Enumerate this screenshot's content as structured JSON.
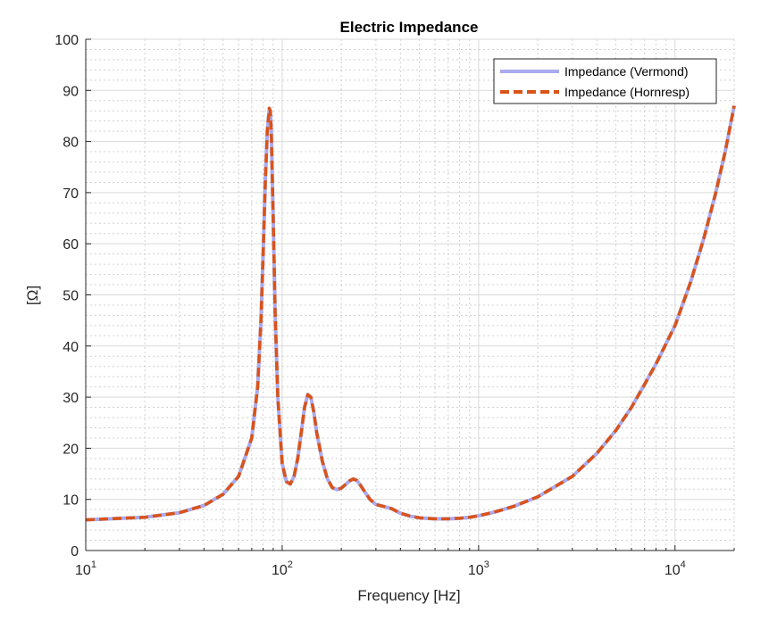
{
  "chart_data": {
    "type": "line",
    "title": "Electric Impedance",
    "xlabel": "Frequency [Hz]",
    "ylabel": "[Ω]",
    "xscale": "log",
    "xlim": [
      10,
      20000
    ],
    "ylim": [
      0,
      100
    ],
    "x_ticks": [
      {
        "base": "10",
        "exp": "1",
        "value": 10
      },
      {
        "base": "10",
        "exp": "2",
        "value": 100
      },
      {
        "base": "10",
        "exp": "3",
        "value": 1000
      },
      {
        "base": "10",
        "exp": "4",
        "value": 10000
      }
    ],
    "y_ticks": [
      "0",
      "10",
      "20",
      "30",
      "40",
      "50",
      "60",
      "70",
      "80",
      "90",
      "100"
    ],
    "grid": true,
    "minor_grid": true,
    "legend_position": "top-right",
    "series": [
      {
        "name": "Impedance (Vermond)",
        "color": "#aaaaee",
        "style": "solid",
        "x": [
          10,
          20,
          30,
          40,
          50,
          60,
          70,
          75,
          78,
          80,
          82,
          84,
          86,
          87,
          88,
          90,
          92,
          95,
          100,
          105,
          110,
          115,
          120,
          125,
          130,
          135,
          140,
          145,
          150,
          160,
          170,
          180,
          190,
          200,
          210,
          220,
          230,
          240,
          250,
          260,
          280,
          300,
          330,
          360,
          400,
          450,
          500,
          600,
          700,
          800,
          900,
          1000,
          1200,
          1500,
          2000,
          3000,
          4000,
          5000,
          6000,
          7000,
          8000,
          10000,
          12000,
          14000,
          16000,
          18000,
          20000
        ],
        "y": [
          6.0,
          6.5,
          7.4,
          8.8,
          11.0,
          14.5,
          22.0,
          32.0,
          45.0,
          58.0,
          72.0,
          82.0,
          86.5,
          86.0,
          82.0,
          65.0,
          47.0,
          30.0,
          17.0,
          13.5,
          13.0,
          14.5,
          18.0,
          23.0,
          28.0,
          30.5,
          30.0,
          27.0,
          23.0,
          17.5,
          14.0,
          12.3,
          11.9,
          12.2,
          12.9,
          13.6,
          14.0,
          13.7,
          12.8,
          11.8,
          10.0,
          9.0,
          8.6,
          8.2,
          7.3,
          6.7,
          6.4,
          6.2,
          6.2,
          6.3,
          6.5,
          6.8,
          7.5,
          8.6,
          10.5,
          14.5,
          19.0,
          23.5,
          28.0,
          32.5,
          36.5,
          44.0,
          52.5,
          61.0,
          69.5,
          78.0,
          87.0
        ]
      },
      {
        "name": "Impedance (Hornresp)",
        "color": "#d95319",
        "style": "dashed",
        "x": [
          10,
          20,
          30,
          40,
          50,
          60,
          70,
          75,
          78,
          80,
          82,
          84,
          86,
          87,
          88,
          90,
          92,
          95,
          100,
          105,
          110,
          115,
          120,
          125,
          130,
          135,
          140,
          145,
          150,
          160,
          170,
          180,
          190,
          200,
          210,
          220,
          230,
          240,
          250,
          260,
          280,
          300,
          330,
          360,
          400,
          450,
          500,
          600,
          700,
          800,
          900,
          1000,
          1200,
          1500,
          2000,
          3000,
          4000,
          5000,
          6000,
          7000,
          8000,
          10000,
          12000,
          14000,
          16000,
          18000,
          20000
        ],
        "y": [
          6.0,
          6.5,
          7.4,
          8.8,
          11.0,
          14.5,
          22.0,
          32.0,
          45.0,
          58.0,
          72.0,
          82.0,
          86.5,
          86.0,
          82.0,
          65.0,
          47.0,
          30.0,
          17.0,
          13.5,
          13.0,
          14.5,
          18.0,
          23.0,
          28.0,
          30.5,
          30.0,
          27.0,
          23.0,
          17.5,
          14.0,
          12.3,
          11.9,
          12.2,
          12.9,
          13.6,
          14.0,
          13.7,
          12.8,
          11.8,
          10.0,
          9.0,
          8.6,
          8.2,
          7.3,
          6.7,
          6.4,
          6.2,
          6.2,
          6.3,
          6.5,
          6.8,
          7.5,
          8.6,
          10.5,
          14.5,
          19.0,
          23.5,
          28.0,
          32.5,
          36.5,
          44.0,
          52.5,
          61.0,
          69.5,
          78.0,
          87.0
        ]
      }
    ]
  }
}
